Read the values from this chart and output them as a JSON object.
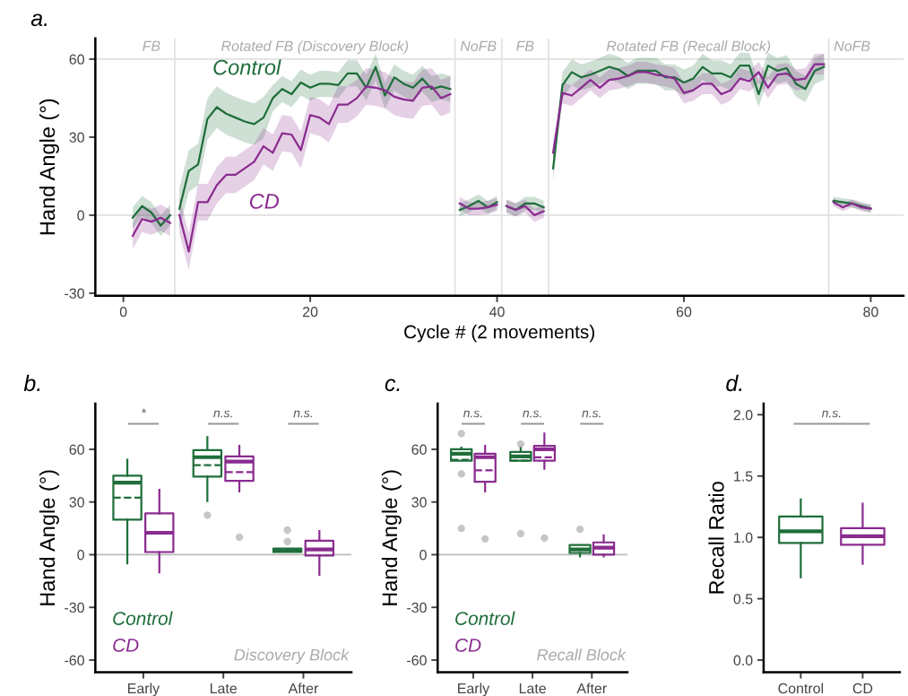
{
  "chart_data": [
    {
      "type": "line",
      "title": "a.",
      "xlabel": "Cycle # (2 movements)",
      "ylabel": "Hand Angle (°)",
      "xlim": [
        -3,
        83.5
      ],
      "ylim": [
        -31,
        68
      ],
      "xticks": [
        0,
        20,
        40,
        60,
        80
      ],
      "yticks": [
        -30,
        0,
        30,
        60
      ],
      "x": [
        1,
        2,
        3,
        4,
        5,
        5.5,
        6,
        7,
        8,
        9,
        10,
        11,
        12,
        13,
        14,
        15,
        16,
        17,
        18,
        19,
        20,
        21,
        22,
        23,
        24,
        25,
        26,
        27,
        28,
        29,
        30,
        31,
        32,
        33,
        34,
        35,
        35.5,
        36,
        37,
        38,
        39,
        40,
        40.5,
        41,
        42,
        43,
        44,
        45,
        45.5,
        46,
        47,
        48,
        49,
        50,
        51,
        52,
        53,
        54,
        55,
        56,
        57,
        58,
        59,
        60,
        61,
        62,
        63,
        64,
        65,
        66,
        67,
        68,
        69,
        70,
        71,
        72,
        73,
        74,
        75,
        75.5,
        76,
        77,
        78,
        79,
        80
      ],
      "series": [
        {
          "name": "Control",
          "color": "#1f6e3b",
          "values": [
            -1,
            3.5,
            1,
            -4,
            0,
            null,
            2.5,
            17,
            19.5,
            37,
            41.5,
            39,
            37.5,
            36,
            35,
            37.5,
            45,
            48.5,
            46.5,
            51,
            49,
            50.5,
            50.5,
            50,
            54.5,
            54.5,
            49,
            57,
            46,
            53,
            50.5,
            49,
            52.5,
            48.5,
            49.5,
            48.5,
            null,
            2,
            3.5,
            5.5,
            3,
            5,
            null,
            3.5,
            2,
            4.5,
            4.5,
            3,
            null,
            18,
            50,
            55,
            53,
            54,
            55.5,
            57,
            56,
            53.5,
            55.5,
            55.5,
            55.5,
            53,
            53,
            51,
            52.5,
            57,
            54.5,
            54.5,
            53,
            57.5,
            57.5,
            46.5,
            57.5,
            55.5,
            56.5,
            50.5,
            48.5,
            55.5,
            57,
            null,
            5.5,
            5,
            4.5,
            3.5,
            2.5
          ],
          "lower": [
            -5,
            -0.5,
            -3,
            -8,
            -4,
            null,
            -5.5,
            9,
            11.5,
            29,
            33.5,
            31,
            29.5,
            28,
            27,
            29.5,
            40,
            43.5,
            41.5,
            46,
            44,
            45.5,
            45.5,
            45,
            49.5,
            49.5,
            44,
            52,
            41,
            48,
            45.5,
            44,
            47.5,
            43.5,
            44.5,
            43.5,
            null,
            -0.5,
            1,
            3,
            0.5,
            2.5,
            null,
            1,
            -0.5,
            2,
            2,
            0.5,
            null,
            13,
            45,
            50,
            48,
            49,
            50.5,
            52,
            51,
            48.5,
            50.5,
            50.5,
            50.5,
            48,
            48,
            46,
            47.5,
            52,
            49.5,
            49.5,
            48,
            52.5,
            52.5,
            41.5,
            52.5,
            50.5,
            51.5,
            45.5,
            43.5,
            50.5,
            52,
            null,
            4,
            3.5,
            3,
            2,
            1
          ],
          "upper": [
            3,
            7.5,
            5,
            0,
            4,
            null,
            10.5,
            25,
            27.5,
            45,
            49.5,
            47,
            45.5,
            44,
            43,
            45.5,
            50,
            53.5,
            51.5,
            56,
            54,
            55.5,
            55.5,
            55,
            59.5,
            59.5,
            54,
            62,
            51,
            58,
            55.5,
            54,
            57.5,
            53.5,
            54.5,
            53.5,
            null,
            4.5,
            6,
            8,
            5.5,
            7.5,
            null,
            6,
            4.5,
            7,
            7,
            5.5,
            null,
            23,
            55,
            60,
            58,
            59,
            60.5,
            62,
            61,
            58.5,
            60.5,
            60.5,
            60.5,
            58,
            58,
            56,
            57.5,
            62,
            59.5,
            59.5,
            58,
            62.5,
            62.5,
            51.5,
            62.5,
            60.5,
            61.5,
            55.5,
            53.5,
            60.5,
            62,
            null,
            7,
            6.5,
            6,
            5,
            4
          ]
        },
        {
          "name": "CD",
          "color": "#8a2b8f",
          "values": [
            -8,
            -1.5,
            -2.5,
            -1,
            -3,
            null,
            0,
            -14,
            5,
            5,
            11.5,
            15.5,
            15.5,
            18,
            20.5,
            26.5,
            24,
            31.5,
            31,
            25,
            38.5,
            37.5,
            35,
            42.5,
            42.5,
            45,
            49.5,
            49,
            48,
            45.5,
            44.5,
            44,
            49,
            49.5,
            45,
            46.5,
            null,
            4.5,
            2.5,
            2.5,
            3,
            4,
            null,
            3.5,
            2,
            3.5,
            0,
            1.5,
            null,
            24,
            47,
            46,
            49,
            52,
            49,
            52,
            52.5,
            53.5,
            55,
            55,
            54,
            53.5,
            52.5,
            47,
            48,
            50.5,
            50.5,
            46.5,
            48,
            52.5,
            51.5,
            55,
            49,
            54,
            54.5,
            52,
            52.5,
            58,
            58,
            null,
            5,
            3,
            4.5,
            3,
            2.5
          ],
          "lower": [
            -13,
            -6.5,
            -7.5,
            -6,
            -8,
            null,
            -7,
            -21,
            -2,
            -2,
            4.5,
            8.5,
            8.5,
            11,
            13.5,
            19.5,
            17,
            24.5,
            24,
            18,
            31.5,
            30.5,
            28,
            35.5,
            35.5,
            38,
            42.5,
            42,
            41,
            38.5,
            37.5,
            37,
            42,
            42.5,
            38,
            39.5,
            null,
            2,
            0,
            0,
            0.5,
            1.5,
            null,
            1,
            -0.5,
            1,
            -2.5,
            -1,
            null,
            20,
            43,
            42,
            45,
            48,
            45,
            48,
            48.5,
            49.5,
            51,
            51,
            50,
            49.5,
            48.5,
            43,
            44,
            46.5,
            46.5,
            42.5,
            44,
            48.5,
            47.5,
            51,
            45,
            50,
            50.5,
            48,
            48.5,
            54,
            54,
            null,
            3.5,
            1.5,
            3,
            1.5,
            1
          ],
          "upper": [
            -3,
            3.5,
            2.5,
            4,
            2,
            null,
            7,
            -7,
            12,
            12,
            18.5,
            22.5,
            22.5,
            25,
            27.5,
            33.5,
            31,
            38.5,
            38,
            32,
            45.5,
            44.5,
            42,
            49.5,
            49.5,
            52,
            56.5,
            56,
            55,
            52.5,
            51.5,
            51,
            56,
            56.5,
            52,
            53.5,
            null,
            7,
            5,
            5,
            5.5,
            6.5,
            null,
            6,
            4.5,
            6,
            2.5,
            4,
            null,
            28,
            51,
            50,
            53,
            56,
            53,
            56,
            56.5,
            57.5,
            59,
            59,
            58,
            57.5,
            56.5,
            51,
            52,
            54.5,
            54.5,
            50.5,
            52,
            56.5,
            55.5,
            59,
            53,
            58,
            58.5,
            56,
            56.5,
            62,
            62,
            null,
            6.5,
            4.5,
            6,
            4.5,
            4
          ]
        }
      ],
      "ref_lines": [
        {
          "axis": "y",
          "value": 0,
          "color": "#e0e0e0"
        },
        {
          "axis": "y",
          "value": 60,
          "color": "#e0e0e0"
        },
        {
          "axis": "x",
          "value": 5.5,
          "color": "#e0e0e0"
        },
        {
          "axis": "x",
          "value": 35.5,
          "color": "#e0e0e0"
        },
        {
          "axis": "x",
          "value": 40.5,
          "color": "#e0e0e0"
        },
        {
          "axis": "x",
          "value": 45.5,
          "color": "#e0e0e0"
        },
        {
          "axis": "x",
          "value": 75.5,
          "color": "#e0e0e0"
        }
      ],
      "annotations": [
        "FB",
        "Rotated FB (Discovery Block)",
        "NoFB",
        "FB",
        "Rotated FB (Recall Block)",
        "NoFB"
      ]
    },
    {
      "type": "box",
      "title": "b.",
      "ylabel": "Hand Angle (°)",
      "categories": [
        "Early",
        "Late",
        "After"
      ],
      "ylim": [
        -67,
        86
      ],
      "yticks": [
        -60,
        -30,
        0,
        30,
        60
      ],
      "legend": "bottom left",
      "series": [
        {
          "name": "Control",
          "color": "#1f6e3b",
          "boxes": [
            {
              "low": -5,
              "q1": 20,
              "median": 41,
              "q3": 45,
              "high": 54,
              "mean": 32.5
            },
            {
              "low": 30.5,
              "q1": 44.5,
              "median": 55.5,
              "q3": 59.5,
              "high": 67,
              "mean": 51,
              "outliers": [
                22.5
              ]
            },
            {
              "low": 1.5,
              "q1": 1.5,
              "median": 2.5,
              "q3": 3.5,
              "high": 3.5,
              "outliers": [
                14,
                7.5
              ]
            }
          ]
        },
        {
          "name": "CD",
          "color": "#8a2b8f",
          "boxes": [
            {
              "low": -10,
              "q1": 1.5,
              "median": 12.5,
              "q3": 23.5,
              "high": 37
            },
            {
              "low": 36,
              "q1": 42,
              "median": 53,
              "q3": 56,
              "high": 62,
              "mean": 47,
              "outliers": [
                10
              ]
            },
            {
              "low": -11.5,
              "q1": -0.5,
              "median": 3,
              "q3": 8,
              "high": 13.5
            }
          ]
        }
      ],
      "ref_lines": [
        {
          "axis": "y",
          "value": 0,
          "color": "#bbbbbb"
        }
      ],
      "annotations": [
        "*",
        "n.s.",
        "n.s.",
        "Discovery Block"
      ]
    },
    {
      "type": "box",
      "title": "c.",
      "ylabel": "Hand Angle (°)",
      "categories": [
        "Early",
        "Late",
        "After"
      ],
      "ylim": [
        -67,
        86
      ],
      "yticks": [
        -60,
        -30,
        0,
        30,
        60
      ],
      "legend": "bottom left",
      "series": [
        {
          "name": "Control",
          "color": "#1f6e3b",
          "boxes": [
            {
              "low": 53.5,
              "q1": 53.5,
              "median": 57.5,
              "q3": 60,
              "high": 61,
              "mean": 54,
              "outliers": [
                69,
                46,
                15
              ]
            },
            {
              "low": 53.5,
              "q1": 53.5,
              "median": 56,
              "q3": 58.5,
              "high": 61,
              "mean": 53.5,
              "outliers": [
                63,
                12
              ]
            },
            {
              "low": -1,
              "q1": 1,
              "median": 3,
              "q3": 5.5,
              "high": 5.5,
              "outliers": [
                14.5
              ]
            }
          ]
        },
        {
          "name": "CD",
          "color": "#8a2b8f",
          "boxes": [
            {
              "low": 36,
              "q1": 41.5,
              "median": 55.5,
              "q3": 57.5,
              "high": 62,
              "mean": 48,
              "outliers": [
                9
              ]
            },
            {
              "low": 49,
              "q1": 53.5,
              "median": 60,
              "q3": 62,
              "high": 69,
              "mean": 55.5,
              "outliers": [
                9.5
              ]
            },
            {
              "low": -1,
              "q1": 0,
              "median": 4,
              "q3": 7,
              "high": 11
            }
          ]
        }
      ],
      "ref_lines": [
        {
          "axis": "y",
          "value": 0,
          "color": "#bbbbbb"
        }
      ],
      "annotations": [
        "n.s.",
        "n.s.",
        "n.s.",
        "Recall Block"
      ]
    },
    {
      "type": "box",
      "title": "d.",
      "ylabel": "Recall Ratio",
      "categories": [
        "Control",
        "CD"
      ],
      "ylim": [
        -0.1,
        2.09
      ],
      "yticks": [
        {
          "value": 0,
          "label": "0.0"
        },
        {
          "value": 0.5,
          "label": "0.5"
        },
        {
          "value": 1,
          "label": "1.0"
        },
        {
          "value": 1.5,
          "label": "1.5"
        },
        {
          "value": 2,
          "label": "2.0"
        }
      ],
      "series": [
        {
          "colors": [
            "#1f6e3b",
            "#8a2b8f"
          ],
          "boxes": [
            {
              "low": 0.675,
              "q1": 0.955,
              "median": 1.05,
              "q3": 1.17,
              "high": 1.31
            },
            {
              "low": 0.785,
              "q1": 0.94,
              "median": 1.01,
              "q3": 1.075,
              "high": 1.275
            }
          ]
        }
      ],
      "annotations": [
        "n.s."
      ]
    }
  ]
}
